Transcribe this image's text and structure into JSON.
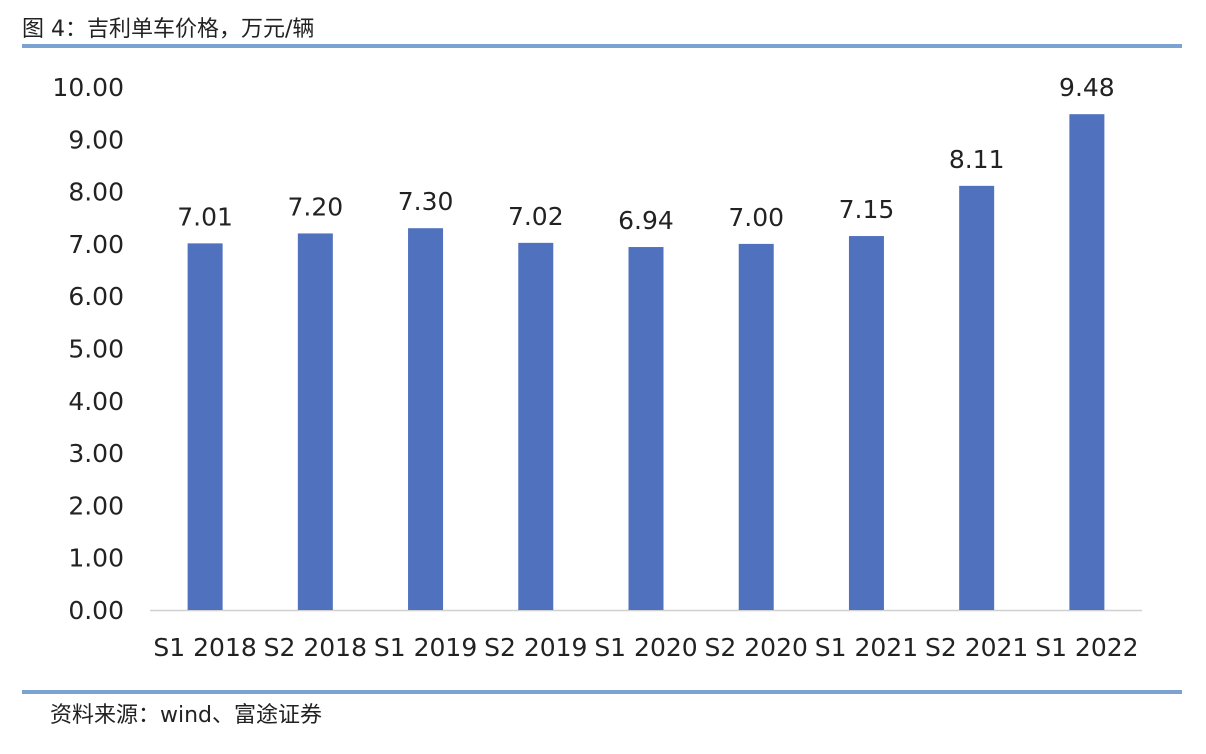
{
  "header": {
    "title": "图 4：吉利单车价格，万元/辆"
  },
  "footer": {
    "source": "资料来源：wind、富途证券"
  },
  "colors": {
    "bar": "#4f71be",
    "rule": "#7aa3d2",
    "axis": "#d0d0d0"
  },
  "chart_data": {
    "type": "bar",
    "title": "",
    "xlabel": "",
    "ylabel": "",
    "categories": [
      "S1 2018",
      "S2 2018",
      "S1 2019",
      "S2 2019",
      "S1 2020",
      "S2 2020",
      "S1 2021",
      "S2 2021",
      "S1 2022"
    ],
    "values": [
      7.01,
      7.2,
      7.3,
      7.02,
      6.94,
      7.0,
      7.15,
      8.11,
      9.48
    ],
    "data_labels": [
      "7.01",
      "7.20",
      "7.30",
      "7.02",
      "6.94",
      "7.00",
      "7.15",
      "8.11",
      "9.48"
    ],
    "ylim": [
      0,
      10
    ],
    "yticks": [
      "0.00",
      "1.00",
      "2.00",
      "3.00",
      "4.00",
      "5.00",
      "6.00",
      "7.00",
      "8.00",
      "9.00",
      "10.00"
    ],
    "grid": false,
    "legend": "none"
  }
}
